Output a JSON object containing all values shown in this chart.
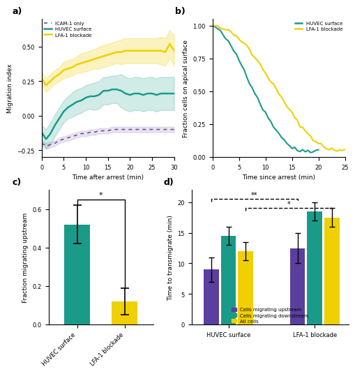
{
  "colors": {
    "teal": "#1a9b8a",
    "yellow": "#f0d000",
    "purple": "#6b4f9e",
    "teal_light_alpha": 0.2,
    "purple_light_alpha": 0.15,
    "yellow_light_alpha": 0.25
  },
  "panel_a": {
    "time": [
      0,
      1,
      2,
      3,
      4,
      5,
      6,
      7,
      8,
      9,
      10,
      11,
      12,
      13,
      14,
      15,
      16,
      17,
      18,
      19,
      20,
      21,
      22,
      23,
      24,
      25,
      26,
      27,
      28,
      29,
      30
    ],
    "huvec_mean": [
      -0.12,
      -0.17,
      -0.13,
      -0.07,
      -0.02,
      0.03,
      0.06,
      0.08,
      0.1,
      0.11,
      0.13,
      0.14,
      0.14,
      0.15,
      0.18,
      0.18,
      0.19,
      0.19,
      0.18,
      0.16,
      0.15,
      0.16,
      0.16,
      0.15,
      0.16,
      0.16,
      0.15,
      0.16,
      0.16,
      0.16,
      0.16
    ],
    "huvec_sem": [
      0.05,
      0.07,
      0.08,
      0.08,
      0.08,
      0.08,
      0.08,
      0.09,
      0.09,
      0.09,
      0.09,
      0.09,
      0.1,
      0.1,
      0.1,
      0.1,
      0.1,
      0.1,
      0.12,
      0.12,
      0.12,
      0.12,
      0.12,
      0.12,
      0.12,
      0.12,
      0.12,
      0.12,
      0.12,
      0.12,
      0.12
    ],
    "lfa_mean": [
      0.27,
      0.22,
      0.25,
      0.28,
      0.3,
      0.33,
      0.34,
      0.35,
      0.37,
      0.38,
      0.39,
      0.4,
      0.41,
      0.42,
      0.43,
      0.44,
      0.45,
      0.46,
      0.46,
      0.47,
      0.47,
      0.47,
      0.47,
      0.47,
      0.47,
      0.47,
      0.47,
      0.47,
      0.46,
      0.52,
      0.47
    ],
    "lfa_sem": [
      0.05,
      0.05,
      0.05,
      0.05,
      0.05,
      0.06,
      0.06,
      0.06,
      0.06,
      0.07,
      0.07,
      0.07,
      0.07,
      0.08,
      0.08,
      0.08,
      0.08,
      0.08,
      0.09,
      0.09,
      0.09,
      0.09,
      0.09,
      0.09,
      0.09,
      0.09,
      0.09,
      0.1,
      0.1,
      0.1,
      0.11
    ],
    "icam_mean": [
      -0.2,
      -0.22,
      -0.21,
      -0.2,
      -0.18,
      -0.17,
      -0.16,
      -0.15,
      -0.14,
      -0.13,
      -0.13,
      -0.12,
      -0.12,
      -0.11,
      -0.11,
      -0.11,
      -0.1,
      -0.1,
      -0.1,
      -0.1,
      -0.1,
      -0.1,
      -0.1,
      -0.1,
      -0.1,
      -0.1,
      -0.1,
      -0.1,
      -0.1,
      -0.1,
      -0.1
    ],
    "icam_sem": [
      0.02,
      0.02,
      0.02,
      0.02,
      0.02,
      0.02,
      0.02,
      0.02,
      0.02,
      0.02,
      0.02,
      0.02,
      0.02,
      0.02,
      0.02,
      0.02,
      0.02,
      0.02,
      0.02,
      0.02,
      0.02,
      0.02,
      0.02,
      0.02,
      0.02,
      0.02,
      0.02,
      0.02,
      0.02,
      0.02,
      0.02
    ],
    "xlabel": "Time after arrest (min)",
    "ylabel": "Migration index",
    "xlim": [
      0,
      30
    ],
    "ylim": [
      -0.3,
      0.7
    ],
    "yticks": [
      -0.25,
      0.0,
      0.25,
      0.5
    ]
  },
  "panel_b": {
    "huvec_x": [
      0,
      0.5,
      1,
      1.5,
      2,
      2.5,
      3,
      3.5,
      4,
      4.5,
      5,
      5.5,
      6,
      6.5,
      7,
      7.5,
      8,
      8.5,
      9,
      9.5,
      10,
      10.5,
      11,
      11.5,
      12,
      12.5,
      13,
      13.5,
      14,
      14.5,
      15,
      15.5,
      16,
      16.5,
      17,
      17.5,
      18,
      18.5,
      19,
      19.5,
      20
    ],
    "huvec_y": [
      1.0,
      0.99,
      0.97,
      0.95,
      0.93,
      0.9,
      0.87,
      0.84,
      0.81,
      0.78,
      0.74,
      0.7,
      0.66,
      0.62,
      0.57,
      0.53,
      0.49,
      0.45,
      0.41,
      0.37,
      0.33,
      0.3,
      0.27,
      0.24,
      0.21,
      0.18,
      0.16,
      0.13,
      0.11,
      0.09,
      0.07,
      0.06,
      0.05,
      0.05,
      0.05,
      0.05,
      0.05,
      0.05,
      0.05,
      0.05,
      0.05
    ],
    "lfa_x": [
      0,
      0.5,
      1,
      1.5,
      2,
      2.5,
      3,
      3.5,
      4,
      4.5,
      5,
      5.5,
      6,
      6.5,
      7,
      7.5,
      8,
      8.5,
      9,
      9.5,
      10,
      10.5,
      11,
      11.5,
      12,
      12.5,
      13,
      13.5,
      14,
      14.5,
      15,
      15.5,
      16,
      16.5,
      17,
      17.5,
      18,
      18.5,
      19,
      19.5,
      20,
      20.5,
      21,
      21.5,
      22,
      22.5,
      23,
      23.5,
      24,
      24.5,
      25
    ],
    "lfa_y": [
      1.0,
      1.0,
      1.0,
      0.99,
      0.98,
      0.97,
      0.96,
      0.95,
      0.94,
      0.92,
      0.9,
      0.88,
      0.86,
      0.84,
      0.81,
      0.78,
      0.76,
      0.73,
      0.7,
      0.67,
      0.64,
      0.61,
      0.58,
      0.55,
      0.51,
      0.48,
      0.45,
      0.42,
      0.39,
      0.36,
      0.33,
      0.3,
      0.27,
      0.25,
      0.22,
      0.2,
      0.18,
      0.16,
      0.14,
      0.12,
      0.1,
      0.09,
      0.08,
      0.07,
      0.06,
      0.06,
      0.05,
      0.05,
      0.05,
      0.05,
      0.05
    ],
    "xlabel": "Time since arrest (min)",
    "ylabel": "Fraction cells on apical surface",
    "xlim": [
      0,
      25
    ],
    "ylim": [
      0,
      1.05
    ],
    "yticks": [
      0.0,
      0.25,
      0.5,
      0.75,
      1.0
    ]
  },
  "panel_c": {
    "categories": [
      "HUVEC surface",
      "LFA-1 blockade"
    ],
    "values": [
      0.52,
      0.12
    ],
    "errors": [
      0.1,
      0.07
    ],
    "colors": [
      "#1a9b8a",
      "#f0d000"
    ],
    "ylabel": "Fraction migrating upstream",
    "ylim": [
      0,
      0.7
    ],
    "yticks": [
      0.0,
      0.2,
      0.4,
      0.6
    ],
    "sig_bracket": {
      "y_start": 0.62,
      "y_top": 0.65,
      "drop2": 0.19,
      "text": "*"
    }
  },
  "panel_d": {
    "groups": [
      "HUVEC surface",
      "LFA-1 blockade"
    ],
    "subgroups": [
      "Cells migrating upstream",
      "Cells migrating downstream",
      "All cells"
    ],
    "sub_colors": [
      "#5b3f9e",
      "#1a9b8a",
      "#f0d000"
    ],
    "values": [
      [
        9.0,
        14.5,
        12.0
      ],
      [
        12.5,
        18.5,
        17.5
      ]
    ],
    "errors": [
      [
        2.0,
        1.5,
        1.5
      ],
      [
        2.5,
        1.5,
        1.5
      ]
    ],
    "ylabel": "Time to transmigrate (min)",
    "ylim": [
      0,
      22
    ],
    "yticks": [
      0,
      5,
      10,
      15,
      20
    ],
    "group_centers": [
      0.27,
      1.37
    ],
    "bar_width": 0.22,
    "sig_brackets": [
      {
        "from_g": 0,
        "from_s": 0,
        "to_g": 1,
        "to_s": 0,
        "y": 20.5,
        "text": "**",
        "dashed": true
      },
      {
        "from_g": 0,
        "from_s": 2,
        "to_g": 1,
        "to_s": 2,
        "y": 19.0,
        "text": "*",
        "dashed": true
      }
    ]
  }
}
